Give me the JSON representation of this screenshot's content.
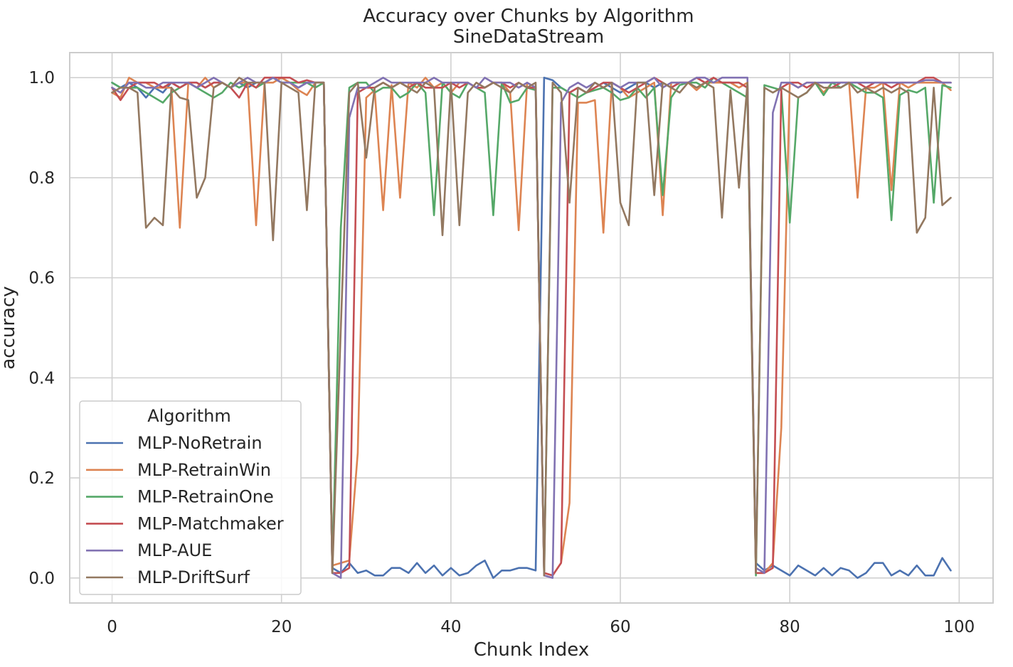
{
  "chart_data": {
    "type": "line",
    "title": "Accuracy over Chunks by Algorithm",
    "subtitle": "SineDataStream",
    "xlabel": "Chunk Index",
    "ylabel": "accuracy",
    "xlim": [
      -5,
      104
    ],
    "ylim": [
      -0.05,
      1.05
    ],
    "xticks": [
      0,
      20,
      40,
      60,
      80,
      100
    ],
    "xtick_labels": [
      "0",
      "20",
      "40",
      "60",
      "80",
      "100"
    ],
    "yticks": [
      0.0,
      0.2,
      0.4,
      0.6,
      0.8,
      1.0
    ],
    "ytick_labels": [
      "0.0",
      "0.2",
      "0.4",
      "0.6",
      "0.8",
      "1.0"
    ],
    "grid": true,
    "legend": {
      "title": "Algorithm",
      "placement": "lower-left"
    },
    "series": [
      {
        "name": "MLP-NoRetrain",
        "color": "#4c72b0",
        "x": [
          0,
          1,
          2,
          3,
          4,
          5,
          6,
          7,
          8,
          9,
          10,
          11,
          12,
          13,
          14,
          15,
          16,
          17,
          18,
          19,
          20,
          21,
          22,
          23,
          24,
          25,
          26,
          27,
          28,
          29,
          30,
          31,
          32,
          33,
          34,
          35,
          36,
          37,
          38,
          39,
          40,
          41,
          42,
          43,
          44,
          45,
          46,
          47,
          48,
          49,
          50,
          51,
          52,
          53,
          54,
          55,
          56,
          57,
          58,
          59,
          60,
          61,
          62,
          63,
          64,
          65,
          66,
          67,
          68,
          69,
          70,
          71,
          72,
          73,
          74,
          75,
          76,
          77,
          78,
          79,
          80,
          81,
          82,
          83,
          84,
          85,
          86,
          87,
          88,
          89,
          90,
          91,
          92,
          93,
          94,
          95,
          96,
          97,
          98,
          99
        ],
        "values": [
          0.99,
          0.98,
          0.99,
          0.98,
          0.96,
          0.98,
          0.97,
          0.99,
          0.98,
          0.99,
          0.99,
          0.98,
          0.99,
          0.99,
          0.98,
          0.99,
          0.98,
          0.99,
          0.99,
          1.0,
          0.99,
          0.99,
          0.98,
          0.99,
          0.99,
          0.99,
          0.02,
          0.01,
          0.03,
          0.01,
          0.015,
          0.005,
          0.005,
          0.02,
          0.02,
          0.01,
          0.03,
          0.01,
          0.025,
          0.005,
          0.02,
          0.005,
          0.01,
          0.025,
          0.035,
          0.0,
          0.015,
          0.015,
          0.02,
          0.02,
          0.015,
          1.0,
          0.995,
          0.98,
          0.97,
          0.98,
          0.97,
          0.98,
          0.99,
          0.98,
          0.97,
          0.98,
          0.99,
          0.99,
          0.98,
          0.99,
          0.98,
          0.99,
          0.99,
          1.0,
          0.99,
          0.99,
          0.99,
          0.99,
          0.99,
          0.98,
          0.03,
          0.015,
          0.025,
          0.015,
          0.005,
          0.025,
          0.015,
          0.005,
          0.02,
          0.005,
          0.02,
          0.015,
          0.0,
          0.01,
          0.03,
          0.03,
          0.005,
          0.015,
          0.005,
          0.025,
          0.005,
          0.005,
          0.04,
          0.015
        ]
      },
      {
        "name": "MLP-RetrainWin",
        "color": "#dd8452",
        "x": [
          0,
          1,
          2,
          3,
          4,
          5,
          6,
          7,
          8,
          9,
          10,
          11,
          12,
          13,
          14,
          15,
          16,
          17,
          18,
          19,
          20,
          21,
          22,
          23,
          24,
          25,
          26,
          27,
          28,
          29,
          30,
          31,
          32,
          33,
          34,
          35,
          36,
          37,
          38,
          39,
          40,
          41,
          42,
          43,
          44,
          45,
          46,
          47,
          48,
          49,
          50,
          51,
          52,
          53,
          54,
          55,
          56,
          57,
          58,
          59,
          60,
          61,
          62,
          63,
          64,
          65,
          66,
          67,
          68,
          69,
          70,
          71,
          72,
          73,
          74,
          75,
          76,
          77,
          78,
          79,
          80,
          81,
          82,
          83,
          84,
          85,
          86,
          87,
          88,
          89,
          90,
          91,
          92,
          93,
          94,
          95,
          96,
          97,
          98,
          99
        ],
        "values": [
          0.97,
          0.96,
          1.0,
          0.99,
          0.99,
          0.98,
          0.98,
          0.98,
          0.7,
          0.99,
          0.98,
          1.0,
          0.98,
          0.99,
          0.98,
          0.99,
          0.99,
          0.705,
          0.99,
          0.99,
          1.0,
          0.99,
          0.975,
          0.965,
          0.99,
          0.99,
          0.025,
          0.03,
          0.035,
          0.25,
          0.96,
          0.975,
          0.735,
          0.985,
          0.76,
          0.99,
          0.98,
          1.0,
          0.98,
          0.99,
          0.97,
          0.99,
          0.99,
          0.98,
          0.98,
          0.99,
          0.99,
          0.97,
          0.695,
          0.99,
          0.98,
          0.01,
          0.005,
          0.03,
          0.15,
          0.95,
          0.95,
          0.955,
          0.69,
          0.99,
          0.98,
          0.96,
          0.97,
          0.98,
          0.99,
          0.725,
          0.99,
          0.99,
          0.99,
          0.975,
          0.99,
          0.99,
          0.99,
          0.99,
          0.98,
          0.99,
          0.01,
          0.01,
          0.03,
          0.3,
          0.99,
          0.98,
          0.99,
          0.99,
          0.97,
          0.99,
          0.99,
          0.99,
          0.76,
          0.98,
          0.98,
          0.99,
          0.775,
          0.99,
          0.98,
          0.99,
          0.99,
          0.99,
          0.99,
          0.975
        ]
      },
      {
        "name": "MLP-RetrainOne",
        "color": "#55a868",
        "x": [
          0,
          1,
          2,
          3,
          4,
          5,
          6,
          7,
          8,
          9,
          10,
          11,
          12,
          13,
          14,
          15,
          16,
          17,
          18,
          19,
          20,
          21,
          22,
          23,
          24,
          25,
          26,
          27,
          28,
          29,
          30,
          31,
          32,
          33,
          34,
          35,
          36,
          37,
          38,
          39,
          40,
          41,
          42,
          43,
          44,
          45,
          46,
          47,
          48,
          49,
          50,
          51,
          52,
          53,
          54,
          55,
          56,
          57,
          58,
          59,
          60,
          61,
          62,
          63,
          64,
          65,
          66,
          67,
          68,
          69,
          70,
          71,
          72,
          73,
          74,
          75,
          76,
          77,
          78,
          79,
          80,
          81,
          82,
          83,
          84,
          85,
          86,
          87,
          88,
          89,
          90,
          91,
          92,
          93,
          94,
          95,
          96,
          97,
          98,
          99
        ],
        "values": [
          0.99,
          0.98,
          0.98,
          0.98,
          0.97,
          0.96,
          0.95,
          0.97,
          0.98,
          0.99,
          0.98,
          0.97,
          0.96,
          0.97,
          0.99,
          0.98,
          0.99,
          0.98,
          0.99,
          1.0,
          0.99,
          0.99,
          0.99,
          0.99,
          0.98,
          0.99,
          0.01,
          0.7,
          0.98,
          0.99,
          0.99,
          0.97,
          0.98,
          0.98,
          0.96,
          0.97,
          0.99,
          0.97,
          0.725,
          0.99,
          0.97,
          0.96,
          0.99,
          0.98,
          0.97,
          0.725,
          0.99,
          0.95,
          0.955,
          0.98,
          0.975,
          0.01,
          0.98,
          0.98,
          0.97,
          0.96,
          0.97,
          0.975,
          0.98,
          0.97,
          0.955,
          0.96,
          0.98,
          0.96,
          0.98,
          0.765,
          0.96,
          0.985,
          0.99,
          0.99,
          0.98,
          1.0,
          0.99,
          0.98,
          0.97,
          0.96,
          0.005,
          0.985,
          0.98,
          0.975,
          0.71,
          0.96,
          0.97,
          0.99,
          0.965,
          0.99,
          0.98,
          0.99,
          0.98,
          0.97,
          0.97,
          0.96,
          0.715,
          0.965,
          0.975,
          0.97,
          0.98,
          0.75,
          0.985,
          0.98
        ]
      },
      {
        "name": "MLP-Matchmaker",
        "color": "#c44e52",
        "x": [
          0,
          1,
          2,
          3,
          4,
          5,
          6,
          7,
          8,
          9,
          10,
          11,
          12,
          13,
          14,
          15,
          16,
          17,
          18,
          19,
          20,
          21,
          22,
          23,
          24,
          25,
          26,
          27,
          28,
          29,
          30,
          31,
          32,
          33,
          34,
          35,
          36,
          37,
          38,
          39,
          40,
          41,
          42,
          43,
          44,
          45,
          46,
          47,
          48,
          49,
          50,
          51,
          52,
          53,
          54,
          55,
          56,
          57,
          58,
          59,
          60,
          61,
          62,
          63,
          64,
          65,
          66,
          67,
          68,
          69,
          70,
          71,
          72,
          73,
          74,
          75,
          76,
          77,
          78,
          79,
          80,
          81,
          82,
          83,
          84,
          85,
          86,
          87,
          88,
          89,
          90,
          91,
          92,
          93,
          94,
          95,
          96,
          97,
          98,
          99
        ],
        "values": [
          0.98,
          0.955,
          0.98,
          0.99,
          0.99,
          0.99,
          0.98,
          0.99,
          0.98,
          0.99,
          0.99,
          0.98,
          0.99,
          0.99,
          0.98,
          0.96,
          0.99,
          0.98,
          1.0,
          1.0,
          1.0,
          1.0,
          0.99,
          0.995,
          0.99,
          0.99,
          0.01,
          0.01,
          0.02,
          0.97,
          0.98,
          0.98,
          0.99,
          0.98,
          0.99,
          0.98,
          0.99,
          0.98,
          0.98,
          0.98,
          0.99,
          0.98,
          0.99,
          0.98,
          0.98,
          0.99,
          0.99,
          0.98,
          0.99,
          0.98,
          0.98,
          0.01,
          0.005,
          0.03,
          0.97,
          0.98,
          0.97,
          0.98,
          0.99,
          0.99,
          0.98,
          0.97,
          0.98,
          0.99,
          1.0,
          0.99,
          0.98,
          0.99,
          0.99,
          1.0,
          0.99,
          1.0,
          0.99,
          0.99,
          0.99,
          0.98,
          0.01,
          0.01,
          0.02,
          0.98,
          0.99,
          0.99,
          0.98,
          0.99,
          0.98,
          0.98,
          0.99,
          0.99,
          0.99,
          0.98,
          0.99,
          0.99,
          0.98,
          0.99,
          0.99,
          0.99,
          1.0,
          1.0,
          0.99,
          0.99
        ]
      },
      {
        "name": "MLP-AUE",
        "color": "#8172b2",
        "x": [
          0,
          1,
          2,
          3,
          4,
          5,
          6,
          7,
          8,
          9,
          10,
          11,
          12,
          13,
          14,
          15,
          16,
          17,
          18,
          19,
          20,
          21,
          22,
          23,
          24,
          25,
          26,
          27,
          28,
          29,
          30,
          31,
          32,
          33,
          34,
          35,
          36,
          37,
          38,
          39,
          40,
          41,
          42,
          43,
          44,
          45,
          46,
          47,
          48,
          49,
          50,
          51,
          52,
          53,
          54,
          55,
          56,
          57,
          58,
          59,
          60,
          61,
          62,
          63,
          64,
          65,
          66,
          67,
          68,
          69,
          70,
          71,
          72,
          73,
          74,
          75,
          76,
          77,
          78,
          79,
          80,
          81,
          82,
          83,
          84,
          85,
          86,
          87,
          88,
          89,
          90,
          91,
          92,
          93,
          94,
          95,
          96,
          97,
          98,
          99
        ],
        "values": [
          0.98,
          0.97,
          0.99,
          0.99,
          0.98,
          0.98,
          0.99,
          0.99,
          0.99,
          0.99,
          0.98,
          0.99,
          1.0,
          0.99,
          0.98,
          0.99,
          1.0,
          0.99,
          0.99,
          1.0,
          0.99,
          0.99,
          0.98,
          0.99,
          0.99,
          0.99,
          0.01,
          0.0,
          0.92,
          0.98,
          0.98,
          0.99,
          1.0,
          0.99,
          0.99,
          0.99,
          0.99,
          0.99,
          1.0,
          0.99,
          0.99,
          0.99,
          0.99,
          0.98,
          1.0,
          0.99,
          0.99,
          0.99,
          0.98,
          0.99,
          0.98,
          0.005,
          0.0,
          0.95,
          0.98,
          0.99,
          0.98,
          0.99,
          0.98,
          0.99,
          0.98,
          0.99,
          0.99,
          0.99,
          1.0,
          0.98,
          0.99,
          0.99,
          0.99,
          1.0,
          1.0,
          0.99,
          1.0,
          1.0,
          1.0,
          1.0,
          0.02,
          0.01,
          0.93,
          0.99,
          0.99,
          0.98,
          0.99,
          0.99,
          0.99,
          0.99,
          0.99,
          0.99,
          0.99,
          0.99,
          0.99,
          0.99,
          0.99,
          0.99,
          0.99,
          0.99,
          0.995,
          0.995,
          0.99,
          0.99
        ]
      },
      {
        "name": "MLP-DriftSurf",
        "color": "#937860",
        "x": [
          0,
          1,
          2,
          3,
          4,
          5,
          6,
          7,
          8,
          9,
          10,
          11,
          12,
          13,
          14,
          15,
          16,
          17,
          18,
          19,
          20,
          21,
          22,
          23,
          24,
          25,
          26,
          27,
          28,
          29,
          30,
          31,
          32,
          33,
          34,
          35,
          36,
          37,
          38,
          39,
          40,
          41,
          42,
          43,
          44,
          45,
          46,
          47,
          48,
          49,
          50,
          51,
          52,
          53,
          54,
          55,
          56,
          57,
          58,
          59,
          60,
          61,
          62,
          63,
          64,
          65,
          66,
          67,
          68,
          69,
          70,
          71,
          72,
          73,
          74,
          75,
          76,
          77,
          78,
          79,
          80,
          81,
          82,
          83,
          84,
          85,
          86,
          87,
          88,
          89,
          90,
          91,
          92,
          93,
          94,
          95,
          96,
          97,
          98,
          99
        ],
        "values": [
          0.97,
          0.98,
          0.98,
          0.97,
          0.7,
          0.72,
          0.705,
          0.98,
          0.96,
          0.955,
          0.76,
          0.8,
          0.98,
          0.99,
          0.98,
          1.0,
          0.99,
          0.99,
          0.99,
          0.675,
          0.99,
          0.98,
          0.97,
          0.735,
          0.99,
          0.99,
          0.01,
          0.5,
          0.97,
          0.99,
          0.84,
          0.98,
          0.99,
          0.98,
          0.99,
          0.98,
          0.97,
          0.99,
          0.98,
          0.685,
          0.99,
          0.705,
          0.97,
          0.99,
          0.98,
          0.99,
          0.98,
          0.97,
          0.99,
          0.98,
          0.99,
          0.005,
          0.99,
          0.97,
          0.75,
          0.98,
          0.97,
          0.99,
          0.98,
          0.99,
          0.75,
          0.705,
          0.99,
          0.99,
          0.765,
          0.99,
          0.98,
          0.97,
          0.99,
          0.98,
          0.99,
          0.98,
          0.72,
          0.975,
          0.78,
          0.99,
          0.01,
          0.98,
          0.97,
          0.98,
          0.97,
          0.96,
          0.97,
          0.99,
          0.98,
          0.98,
          0.98,
          0.99,
          0.97,
          0.98,
          0.97,
          0.98,
          0.97,
          0.98,
          0.97,
          0.69,
          0.72,
          0.98,
          0.745,
          0.76
        ]
      }
    ]
  }
}
